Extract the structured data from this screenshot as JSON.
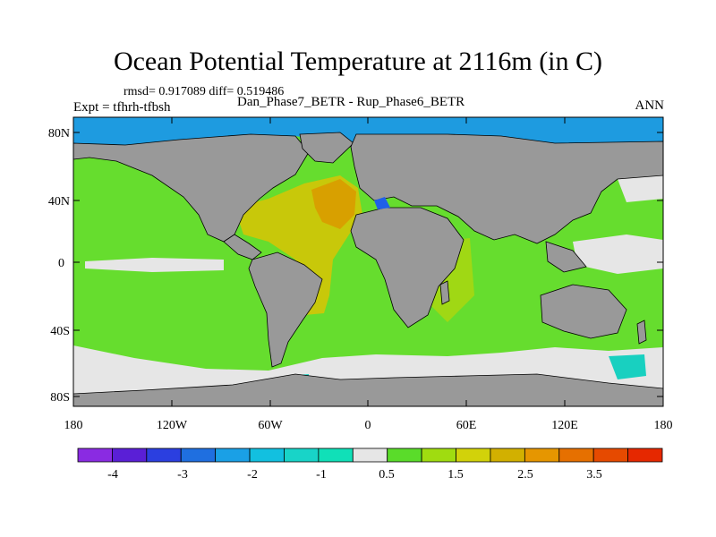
{
  "title": "Ocean Potential Temperature at 2116m (in C)",
  "stats": "rmsd= 0.917089 diff= 0.519486",
  "expt": "Expt = tfhrh-tfbsh",
  "case": "Dan_Phase7_BETR - Rup_Phase6_BETR",
  "season": "ANN",
  "lat_ticks": [
    "80N",
    "40N",
    "0",
    "40S",
    "80S"
  ],
  "lon_ticks": [
    "180",
    "120W",
    "60W",
    "0",
    "60E",
    "120E",
    "180"
  ],
  "colorbar": {
    "colors": [
      "#8a2be2",
      "#5a1fd6",
      "#2b3fe0",
      "#1f6fe0",
      "#1aa0e6",
      "#12c0e0",
      "#18d4c8",
      "#10e0b8",
      "#e6e6e6",
      "#5adc2a",
      "#a0dc10",
      "#d2d20a",
      "#d2b000",
      "#e69600",
      "#e67000",
      "#e64a00",
      "#e62800"
    ],
    "labels": [
      "-4",
      "-3",
      "-2",
      "-1",
      "0.5",
      "1.5",
      "2.5",
      "3.5"
    ]
  },
  "map_colors": {
    "land": "#999999",
    "coast": "#000000",
    "ocean_green": "#66dd2e",
    "arctic_blue": "#1e9be0",
    "near_zero": "#e6e6e6",
    "atlantic_yellow": "#c8c80a",
    "atlantic_orange": "#d8a000",
    "med_blue": "#2060e8",
    "light_green": "#a0d814",
    "cyan": "#18d0c0"
  }
}
